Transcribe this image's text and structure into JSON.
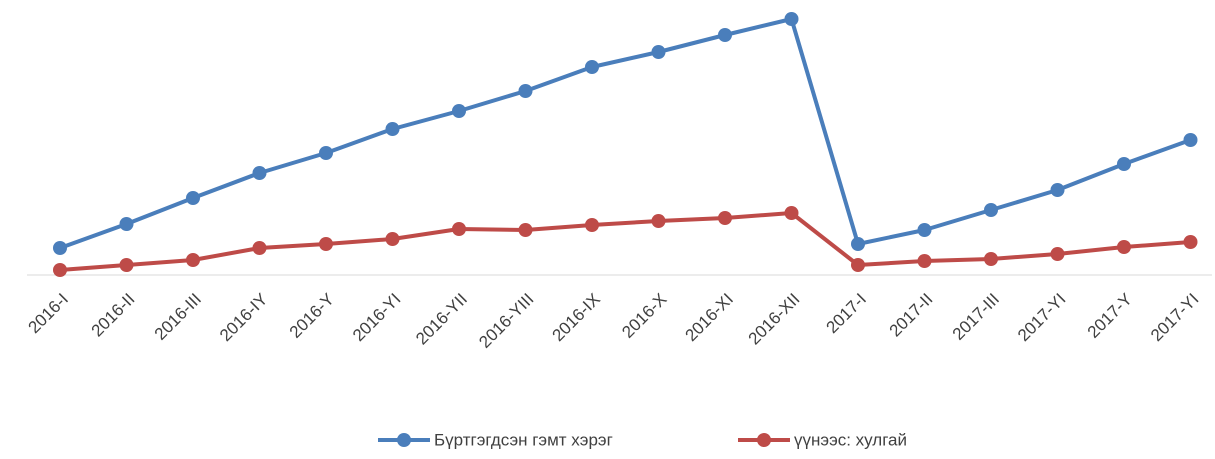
{
  "chart_data": {
    "type": "line",
    "categories": [
      "2016-I",
      "2016-II",
      "2016-III",
      "2016-IY",
      "2016-Y",
      "2016-YI",
      "2016-YII",
      "2016-YIII",
      "2016-IX",
      "2016-X",
      "2016-XI",
      "2016-XII",
      "2017-I",
      "2017-II",
      "2017-III",
      "2017-YI",
      "2017-Y",
      "2017-YI"
    ],
    "series": [
      {
        "name": "Бүртгэгдсэн гэмт хэрэг",
        "color": "#4a7ebb",
        "values": [
          27,
          51,
          77,
          102,
          122,
          146,
          164,
          184,
          208,
          223,
          240,
          256,
          31,
          45,
          65,
          85,
          111,
          135
        ]
      },
      {
        "name": "үүнээс: хулгай",
        "color": "#be4b48",
        "values": [
          5,
          10,
          15,
          27,
          31,
          36,
          46,
          45,
          50,
          54,
          57,
          62,
          10,
          14,
          16,
          21,
          28,
          33
        ]
      }
    ],
    "ylim": [
      0,
      260
    ],
    "legend": "bottom"
  }
}
